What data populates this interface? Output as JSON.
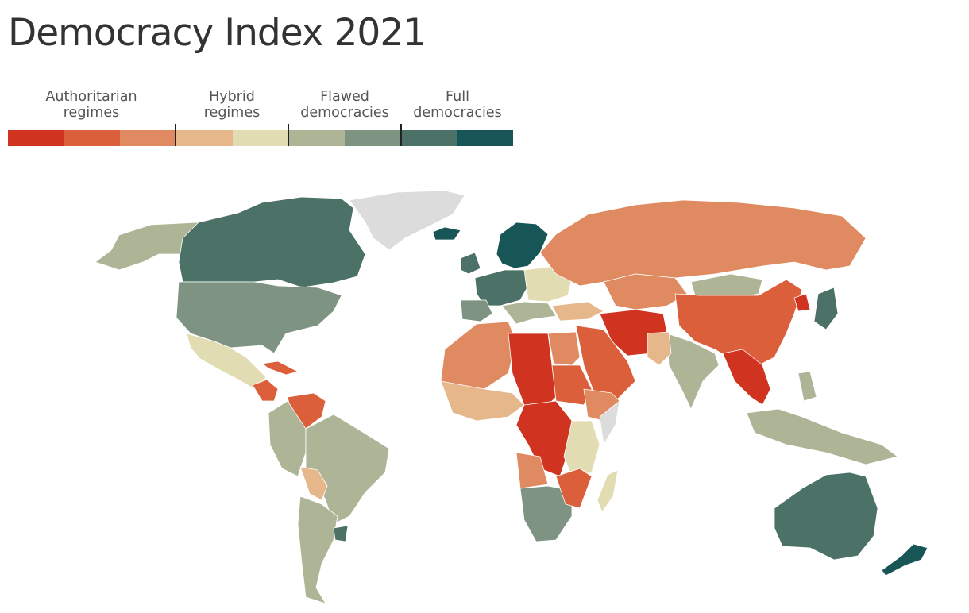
{
  "title": "Democracy Index 2021",
  "legend": {
    "categories": [
      {
        "line1": "Authoritarian",
        "line2": "regimes"
      },
      {
        "line1": "Hybrid",
        "line2": "regimes"
      },
      {
        "line1": "Flawed",
        "line2": "democracies"
      },
      {
        "line1": "Full",
        "line2": "democracies"
      }
    ],
    "colors": [
      "#d03320",
      "#db5f3a",
      "#e08a62",
      "#e6b78a",
      "#e2dcb2",
      "#adb596",
      "#7e9381",
      "#4c7166",
      "#175556"
    ]
  },
  "map": {
    "regime_colors": {
      "authoritarian": [
        "#d03320",
        "#db5f3a",
        "#e08a62"
      ],
      "hybrid": [
        "#e6b78a",
        "#e2dcb2"
      ],
      "flawed": [
        "#adb596",
        "#7e9381"
      ],
      "full": [
        "#4c7166",
        "#175556"
      ],
      "no_data": "#dcdcdc"
    }
  }
}
